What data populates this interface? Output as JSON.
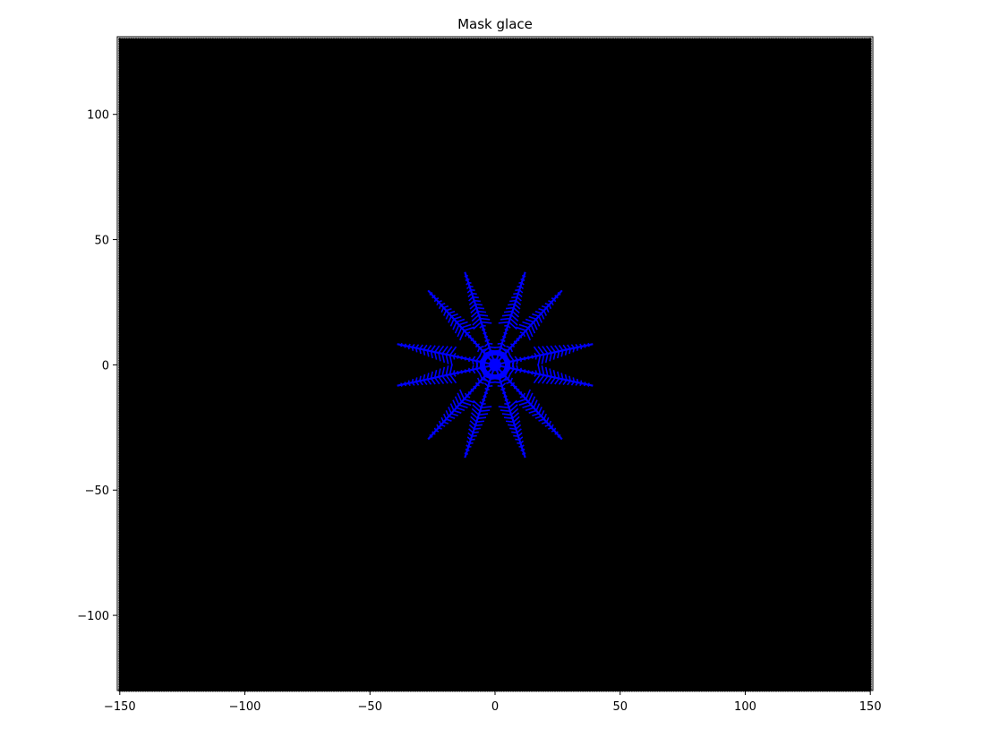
{
  "chart_data": {
    "type": "scatter",
    "title": "Mask glace",
    "xlabel": "",
    "ylabel": "",
    "xlim": [
      -151,
      151
    ],
    "ylim": [
      -130,
      131
    ],
    "xticks": [
      -150,
      -100,
      -50,
      0,
      50,
      100,
      150
    ],
    "yticks": [
      -100,
      -50,
      0,
      50,
      100
    ],
    "xtick_labels": [
      "−150",
      "−100",
      "−50",
      "0",
      "50",
      "100",
      "150"
    ],
    "ytick_labels": [
      "−100",
      "−50",
      "0",
      "50",
      "100"
    ],
    "grid": false,
    "background_region": {
      "x_range": [
        -150,
        150
      ],
      "y_range": [
        -130,
        130
      ],
      "color": "#000000",
      "description": "dense hexagonal lattice of cells outside the ice mask"
    },
    "series": [
      {
        "color": "#0000ff",
        "arms": [
          {
            "angle_deg": 12,
            "length": 40
          },
          {
            "angle_deg": 48,
            "length": 40
          },
          {
            "angle_deg": 72,
            "length": 39
          },
          {
            "angle_deg": 108,
            "length": 39
          },
          {
            "angle_deg": 132,
            "length": 40
          },
          {
            "angle_deg": 168,
            "length": 40
          },
          {
            "angle_deg": 192,
            "length": 40
          },
          {
            "angle_deg": 228,
            "length": 40
          },
          {
            "angle_deg": 252,
            "length": 39
          },
          {
            "angle_deg": 288,
            "length": 39
          },
          {
            "angle_deg": 312,
            "length": 40
          },
          {
            "angle_deg": 348,
            "length": 40
          }
        ],
        "center": [
          0,
          0
        ],
        "core_radius": 5
      }
    ]
  },
  "colors": {
    "background": "#000000",
    "ice": "#0000ff",
    "axes": "#000000"
  }
}
